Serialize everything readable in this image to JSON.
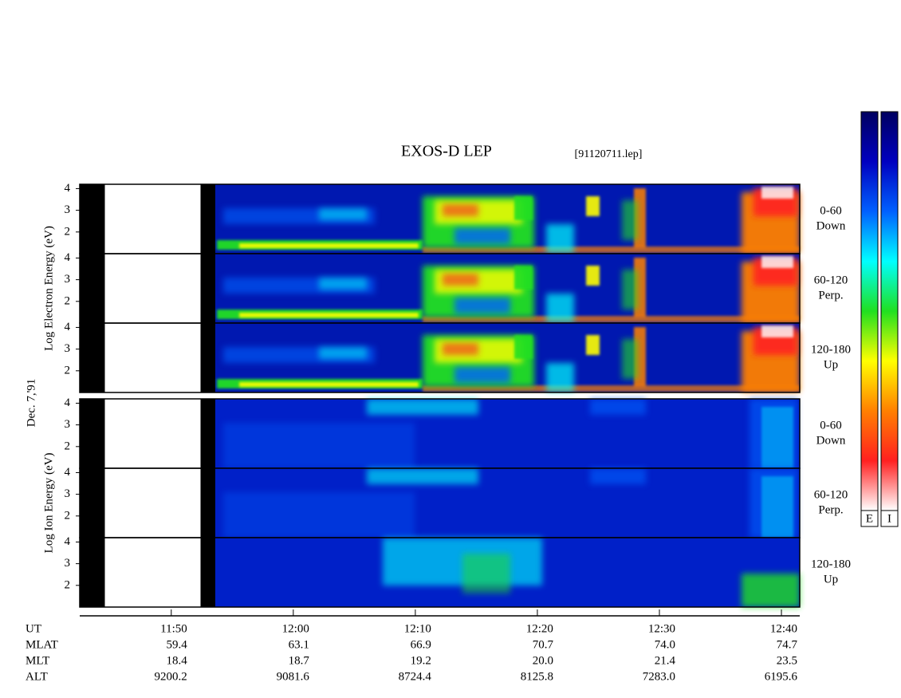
{
  "chart_data": {
    "type": "spectrogram",
    "title": "EXOS-D LEP",
    "file": "[91120711.lep]",
    "date": "Dec. 7,'91",
    "ylim": [
      1,
      4.2
    ],
    "yticks": [
      2,
      3,
      4
    ],
    "xlim": [
      702.5,
      761.5
    ],
    "xticks": [
      {
        "value": 710,
        "label": "11:50"
      },
      {
        "value": 720,
        "label": "12:00"
      },
      {
        "value": 730,
        "label": "12:10"
      },
      {
        "value": 740,
        "label": "12:20"
      },
      {
        "value": 750,
        "label": "12:30"
      },
      {
        "value": 760,
        "label": "12:40"
      }
    ],
    "groups": [
      {
        "ylabel": "Log Electron Energy (eV)",
        "panels": [
          [
            "0-60",
            "Down"
          ],
          [
            "60-120",
            "Perp."
          ],
          [
            "120-180",
            "Up"
          ]
        ]
      },
      {
        "ylabel": "Log Ion Energy (eV)",
        "panels": [
          [
            "0-60",
            "Down"
          ],
          [
            "60-120",
            "Perp."
          ],
          [
            "120-180",
            "Up"
          ]
        ]
      }
    ],
    "orbit": {
      "time_label": "UT",
      "rows": [
        {
          "label": "MLAT",
          "values": [
            "59.4",
            "63.1",
            "66.9",
            "70.7",
            "74.0",
            "74.7"
          ]
        },
        {
          "label": "MLT",
          "values": [
            "18.4",
            "18.7",
            "19.2",
            "20.0",
            "21.4",
            "23.5"
          ]
        },
        {
          "label": "ALT",
          "values": [
            "9200.2",
            "9081.6",
            "8724.4",
            "8125.8",
            "7283.0",
            "6195.6"
          ]
        }
      ]
    },
    "colorbar": {
      "labels": [
        "E",
        "I"
      ],
      "colors": [
        "#ffffff",
        "#ff2020",
        "#ff8000",
        "#ffff00",
        "#20e020",
        "#00ffff",
        "#0060ff",
        "#0000c0",
        "#000060"
      ]
    }
  }
}
